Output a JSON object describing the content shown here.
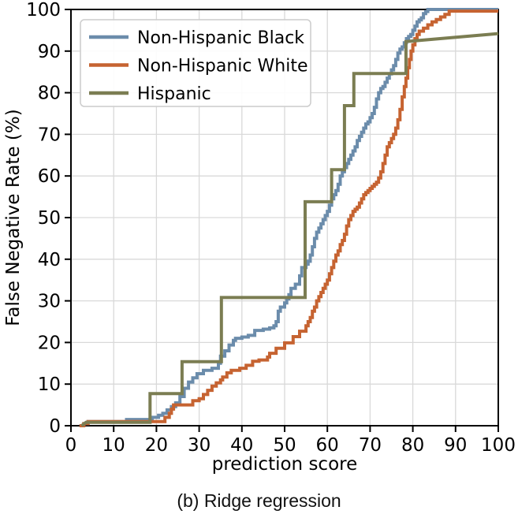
{
  "figure": {
    "caption": "(b) Ridge regression"
  },
  "chart_data": {
    "type": "line",
    "subtype": "step-ecdf",
    "title": "",
    "xlabel": "prediction score",
    "ylabel": "False Negative Rate (%)",
    "xlim": [
      0,
      100
    ],
    "ylim": [
      0,
      100
    ],
    "xticks": [
      0,
      10,
      20,
      30,
      40,
      50,
      60,
      70,
      80,
      90,
      100
    ],
    "yticks": [
      0,
      10,
      20,
      30,
      40,
      50,
      60,
      70,
      80,
      90,
      100
    ],
    "grid": true,
    "grid_color": "#d9d9d9",
    "spine_color": "#000000",
    "legend_position": "upper-left",
    "legend_border_color": "#cccccc",
    "series": [
      {
        "name": "Non-Hispanic Black",
        "color": "#6b8cab",
        "step": true,
        "points": [
          [
            2,
            0
          ],
          [
            3,
            0.5
          ],
          [
            4,
            1
          ],
          [
            13,
            1.5
          ],
          [
            19,
            2
          ],
          [
            20.5,
            2.5
          ],
          [
            21.5,
            3
          ],
          [
            22.5,
            3.8
          ],
          [
            23.5,
            4.6
          ],
          [
            24.5,
            5.5
          ],
          [
            25.5,
            7
          ],
          [
            26.5,
            9
          ],
          [
            27.5,
            10.5
          ],
          [
            28.5,
            11.5
          ],
          [
            29.5,
            12.5
          ],
          [
            31,
            13.3
          ],
          [
            33,
            13.8
          ],
          [
            34.5,
            15
          ],
          [
            35,
            16.7
          ],
          [
            36,
            18
          ],
          [
            37,
            19.4
          ],
          [
            38,
            20.5
          ],
          [
            38.5,
            21
          ],
          [
            40,
            21.3
          ],
          [
            41.5,
            21.7
          ],
          [
            43,
            22.9
          ],
          [
            45,
            23.2
          ],
          [
            46.5,
            23.5
          ],
          [
            47.5,
            24
          ],
          [
            48,
            25
          ],
          [
            48.5,
            27.5
          ],
          [
            49,
            28.5
          ],
          [
            50,
            29.5
          ],
          [
            50.5,
            30.5
          ],
          [
            51,
            31.5
          ],
          [
            51.5,
            33
          ],
          [
            52.5,
            34
          ],
          [
            53.5,
            36
          ],
          [
            54,
            38
          ],
          [
            55,
            38.8
          ],
          [
            55.5,
            39.5
          ],
          [
            56,
            41
          ],
          [
            56.5,
            43
          ],
          [
            57,
            45
          ],
          [
            57.5,
            46.5
          ],
          [
            58,
            47.5
          ],
          [
            58.5,
            48.5
          ],
          [
            59,
            49.5
          ],
          [
            59.5,
            50.5
          ],
          [
            60,
            51.5
          ],
          [
            60.5,
            53
          ],
          [
            61,
            54.5
          ],
          [
            61.5,
            55.5
          ],
          [
            62,
            56.5
          ],
          [
            62.5,
            58
          ],
          [
            63,
            60
          ],
          [
            63.5,
            61
          ],
          [
            64,
            62
          ],
          [
            64.5,
            63
          ],
          [
            65,
            64
          ],
          [
            65.5,
            65
          ],
          [
            66,
            66
          ],
          [
            66.5,
            67
          ],
          [
            67,
            68.5
          ],
          [
            67.5,
            69.5
          ],
          [
            68,
            70.5
          ],
          [
            68.5,
            71.5
          ],
          [
            69,
            72.5
          ],
          [
            69.5,
            73
          ],
          [
            70,
            74
          ],
          [
            70.5,
            75
          ],
          [
            71,
            76.5
          ],
          [
            71.5,
            78.5
          ],
          [
            72,
            80
          ],
          [
            72.5,
            81
          ],
          [
            73,
            81.5
          ],
          [
            73.5,
            82.5
          ],
          [
            74,
            83.5
          ],
          [
            74.5,
            84.5
          ],
          [
            75,
            85.5
          ],
          [
            75.5,
            86.5
          ],
          [
            76,
            88
          ],
          [
            76.5,
            89.5
          ],
          [
            77,
            90.5
          ],
          [
            77.5,
            91
          ],
          [
            78,
            92
          ],
          [
            78.5,
            93
          ],
          [
            79,
            93.5
          ],
          [
            79.5,
            94
          ],
          [
            80,
            95
          ],
          [
            80.5,
            96
          ],
          [
            81,
            97
          ],
          [
            81.5,
            97.5
          ],
          [
            82,
            98
          ],
          [
            82.5,
            99
          ],
          [
            83,
            99.5
          ],
          [
            83.5,
            100
          ],
          [
            100,
            100
          ]
        ]
      },
      {
        "name": "Non-Hispanic White",
        "color": "#c66331",
        "step": true,
        "points": [
          [
            2,
            0
          ],
          [
            3,
            0.5
          ],
          [
            4,
            1
          ],
          [
            21.5,
            1
          ],
          [
            22,
            2
          ],
          [
            23,
            3
          ],
          [
            23.5,
            4
          ],
          [
            24,
            5
          ],
          [
            27.5,
            5
          ],
          [
            28.5,
            6
          ],
          [
            30,
            6.5
          ],
          [
            31,
            7.5
          ],
          [
            32,
            8.5
          ],
          [
            33,
            9.5
          ],
          [
            34,
            10.3
          ],
          [
            35,
            11
          ],
          [
            35.5,
            11.7
          ],
          [
            36.5,
            12.7
          ],
          [
            37.5,
            13.3
          ],
          [
            39.5,
            13.8
          ],
          [
            41,
            14.5
          ],
          [
            42.5,
            15.5
          ],
          [
            44,
            15.8
          ],
          [
            46,
            16.5
          ],
          [
            46.5,
            17.4
          ],
          [
            48,
            18.6
          ],
          [
            50,
            19.9
          ],
          [
            52,
            21.4
          ],
          [
            53.5,
            22.7
          ],
          [
            55,
            24
          ],
          [
            55.5,
            25
          ],
          [
            56,
            26
          ],
          [
            56.5,
            27.5
          ],
          [
            57,
            28.5
          ],
          [
            57.5,
            30
          ],
          [
            58,
            31
          ],
          [
            58.5,
            32
          ],
          [
            59,
            33
          ],
          [
            59.5,
            34
          ],
          [
            60,
            35
          ],
          [
            60.5,
            36.5
          ],
          [
            61,
            38
          ],
          [
            61.5,
            39.5
          ],
          [
            62,
            41
          ],
          [
            62.5,
            42
          ],
          [
            63,
            43.5
          ],
          [
            63.5,
            44.5
          ],
          [
            64,
            46
          ],
          [
            64.5,
            48
          ],
          [
            65,
            49.5
          ],
          [
            65.5,
            50.5
          ],
          [
            66,
            51.5
          ],
          [
            66.5,
            52
          ],
          [
            67,
            52.5
          ],
          [
            67.5,
            53.5
          ],
          [
            68,
            54.5
          ],
          [
            68.5,
            55.5
          ],
          [
            69,
            56
          ],
          [
            69.5,
            56.5
          ],
          [
            70,
            57
          ],
          [
            70.5,
            57.5
          ],
          [
            71,
            58
          ],
          [
            71.5,
            58.5
          ],
          [
            72,
            59.5
          ],
          [
            72.5,
            61
          ],
          [
            73,
            63
          ],
          [
            73.5,
            65
          ],
          [
            74,
            67
          ],
          [
            74.5,
            68
          ],
          [
            75,
            69
          ],
          [
            75.5,
            70
          ],
          [
            76,
            71.5
          ],
          [
            76.5,
            73.5
          ],
          [
            77,
            76
          ],
          [
            77.5,
            79
          ],
          [
            78,
            81.5
          ],
          [
            78.4,
            83.5
          ],
          [
            78.8,
            86
          ],
          [
            79.2,
            88
          ],
          [
            79.6,
            90
          ],
          [
            80,
            91.5
          ],
          [
            80.5,
            93
          ],
          [
            81,
            94
          ],
          [
            81.5,
            94.8
          ],
          [
            82.5,
            95.5
          ],
          [
            83.5,
            96.3
          ],
          [
            84.5,
            97
          ],
          [
            85.5,
            97.6
          ],
          [
            86.5,
            98.2
          ],
          [
            87.5,
            98.8
          ],
          [
            88.5,
            99.6
          ],
          [
            100,
            99.6
          ]
        ]
      },
      {
        "name": "Hispanic",
        "color": "#7b7d52",
        "step": false,
        "points": [
          [
            2.5,
            0
          ],
          [
            3.5,
            0.8
          ],
          [
            18.5,
            0.8
          ],
          [
            18.5,
            7.7
          ],
          [
            26,
            7.7
          ],
          [
            26,
            15.4
          ],
          [
            35.2,
            15.4
          ],
          [
            35.2,
            30.8
          ],
          [
            54.8,
            30.8
          ],
          [
            54.8,
            53.8
          ],
          [
            61,
            53.8
          ],
          [
            61,
            61.5
          ],
          [
            64,
            61.5
          ],
          [
            64,
            76.9
          ],
          [
            66.2,
            76.9
          ],
          [
            66.2,
            84.6
          ],
          [
            78.4,
            84.6
          ],
          [
            78.4,
            92.3
          ],
          [
            100,
            94.2
          ]
        ]
      }
    ]
  }
}
